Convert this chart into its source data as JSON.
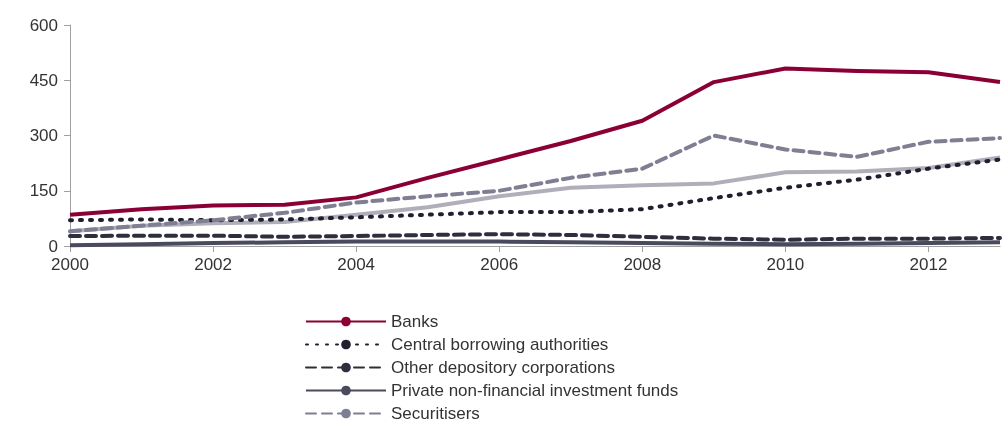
{
  "chart_data": {
    "type": "line",
    "x": [
      2000,
      2001,
      2002,
      2003,
      2004,
      2005,
      2006,
      2007,
      2008,
      2009,
      2010,
      2011,
      2012,
      2013
    ],
    "xlim": [
      2000,
      2013
    ],
    "xticks": [
      2000,
      2002,
      2004,
      2006,
      2008,
      2010,
      2012
    ],
    "ylim": [
      0,
      600
    ],
    "yticks": [
      0,
      150,
      300,
      450,
      600
    ],
    "grid": false,
    "legend": "bottom",
    "marker": "none",
    "series": [
      {
        "name": "Banks",
        "color": "#8b0034",
        "line_style": "solid",
        "values": [
          85,
          100,
          110,
          112,
          132,
          185,
          235,
          285,
          340,
          445,
          482,
          475,
          472,
          445
        ]
      },
      {
        "name": "Central borrowing authorities",
        "color": "#1f1f2e",
        "line_style": "dotted",
        "values": [
          70,
          72,
          70,
          72,
          78,
          85,
          92,
          92,
          100,
          130,
          158,
          180,
          210,
          235
        ]
      },
      {
        "name": "Other depository corporations",
        "color": "#2e2e3c",
        "line_style": "dashed",
        "values": [
          27,
          28,
          28,
          25,
          27,
          30,
          32,
          30,
          25,
          20,
          17,
          20,
          20,
          22
        ]
      },
      {
        "name": "Private non-financial investment funds",
        "color": "#4a4a5e",
        "line_style": "solid",
        "values": [
          2,
          5,
          8,
          10,
          12,
          12,
          12,
          10,
          8,
          6,
          5,
          6,
          8,
          10
        ]
      },
      {
        "name": "Securitisers",
        "color": "#7f7f93",
        "line_style": "dashed",
        "values": [
          40,
          55,
          70,
          90,
          118,
          135,
          150,
          185,
          210,
          300,
          262,
          242,
          283,
          293
        ]
      },
      {
        "color": "#b0aeb8",
        "line_style": "solid",
        "values": [
          40,
          55,
          62,
          65,
          85,
          105,
          135,
          158,
          165,
          170,
          200,
          202,
          212,
          240
        ]
      }
    ]
  }
}
